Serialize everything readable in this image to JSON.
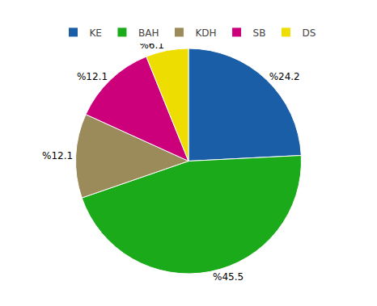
{
  "chart_data": {
    "type": "pie",
    "categories": [
      "KE",
      "BAH",
      "KDH",
      "SB",
      "DS"
    ],
    "values": [
      24.2,
      45.5,
      12.1,
      12.1,
      6.1
    ],
    "value_labels": [
      "%24.2",
      "%45.5",
      "%12.1",
      "%12.1",
      "%6.1"
    ],
    "colors": [
      "#1A5EA8",
      "#1AAA1A",
      "#9B8B5A",
      "#CC007A",
      "#EEDD00"
    ],
    "data_labels": true,
    "legend": "top"
  }
}
